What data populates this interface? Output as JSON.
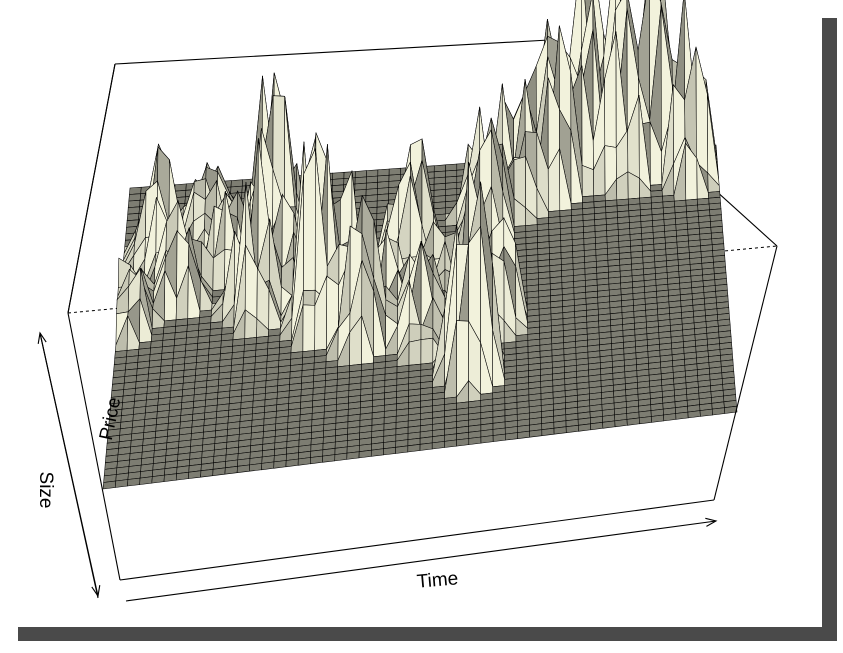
{
  "chart_data": {
    "type": "surface",
    "title": "",
    "xlabel": "Time",
    "ylabel": "Price",
    "zlabel": "Size",
    "grid": true,
    "legend": "none",
    "colors": {
      "peak": "#f2f2dc",
      "base": "#7d7d72",
      "mesh_line": "#000000",
      "shadow": "#4a4a4a"
    },
    "peak_clusters": [
      {
        "time": 0.02,
        "price": 0.55,
        "size": 0.3
      },
      {
        "time": 0.06,
        "price": 0.75,
        "size": 0.45
      },
      {
        "time": 0.1,
        "price": 0.62,
        "size": 0.4
      },
      {
        "time": 0.14,
        "price": 0.86,
        "size": 0.25
      },
      {
        "time": 0.18,
        "price": 0.7,
        "size": 0.35
      },
      {
        "time": 0.22,
        "price": 0.56,
        "size": 0.62
      },
      {
        "time": 0.25,
        "price": 0.8,
        "size": 0.75
      },
      {
        "time": 0.28,
        "price": 0.62,
        "size": 0.4
      },
      {
        "time": 0.33,
        "price": 0.48,
        "size": 0.85
      },
      {
        "time": 0.37,
        "price": 0.6,
        "size": 0.45
      },
      {
        "time": 0.4,
        "price": 0.42,
        "size": 0.55
      },
      {
        "time": 0.45,
        "price": 0.5,
        "size": 0.35
      },
      {
        "time": 0.48,
        "price": 0.68,
        "size": 0.5
      },
      {
        "time": 0.5,
        "price": 0.4,
        "size": 0.4
      },
      {
        "time": 0.53,
        "price": 0.55,
        "size": 0.3
      },
      {
        "time": 0.58,
        "price": 0.26,
        "size": 0.9
      },
      {
        "time": 0.62,
        "price": 0.45,
        "size": 0.55
      },
      {
        "time": 0.6,
        "price": 0.78,
        "size": 0.55
      },
      {
        "time": 0.66,
        "price": 0.86,
        "size": 0.6
      },
      {
        "time": 0.72,
        "price": 0.9,
        "size": 0.8
      },
      {
        "time": 0.78,
        "price": 0.95,
        "size": 0.9
      },
      {
        "time": 0.84,
        "price": 0.92,
        "size": 1.0
      },
      {
        "time": 0.9,
        "price": 0.96,
        "size": 0.85
      },
      {
        "time": 0.95,
        "price": 0.9,
        "size": 0.7
      }
    ]
  }
}
